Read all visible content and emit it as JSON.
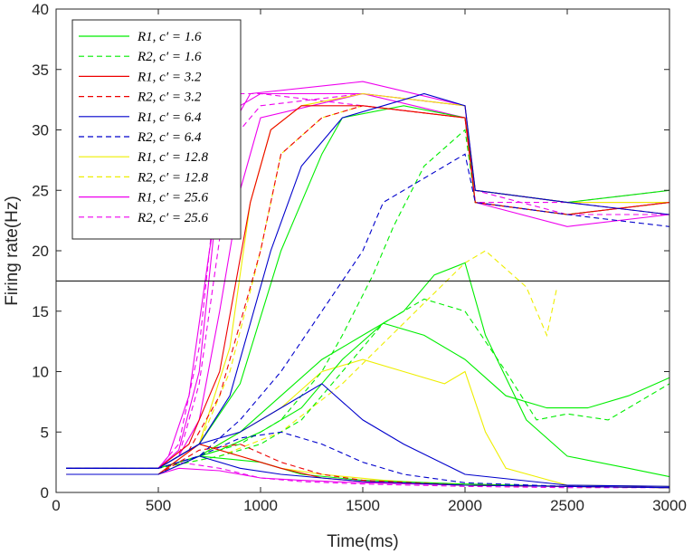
{
  "chart_data": {
    "type": "line",
    "xlabel": "Time(ms)",
    "ylabel": "Firing rate(Hz)",
    "xlim": [
      0,
      3000
    ],
    "ylim": [
      0,
      40
    ],
    "x_ticks": [
      "0",
      "500",
      "1000",
      "1500",
      "2000",
      "2500",
      "3000"
    ],
    "y_ticks": [
      "0",
      "5",
      "10",
      "15",
      "20",
      "25",
      "30",
      "35",
      "40"
    ],
    "grid": false,
    "legend_position": "top-left",
    "threshold": 17.5,
    "legend": [
      {
        "text": "R1, c′ = 1.6",
        "color": "#00ee00",
        "dash": "solid"
      },
      {
        "text": "R2, c′ = 1.6",
        "color": "#00ee00",
        "dash": "dashed"
      },
      {
        "text": "R1, c′ = 3.2",
        "color": "#ee0000",
        "dash": "solid"
      },
      {
        "text": "R2, c′ = 3.2",
        "color": "#ee0000",
        "dash": "dashed"
      },
      {
        "text": "R1, c′ = 6.4",
        "color": "#0000cc",
        "dash": "solid"
      },
      {
        "text": "R2, c′ = 6.4",
        "color": "#0000cc",
        "dash": "dashed"
      },
      {
        "text": "R1, c′ = 12.8",
        "color": "#eeee00",
        "dash": "solid"
      },
      {
        "text": "R2, c′ = 12.8",
        "color": "#eeee00",
        "dash": "dashed"
      },
      {
        "text": "R1, c′ = 25.6",
        "color": "#ee00ee",
        "dash": "solid"
      },
      {
        "text": "R2, c′ = 25.6",
        "color": "#ee00ee",
        "dash": "dashed"
      }
    ],
    "series": [
      {
        "color": "#ee00ee",
        "dash": "solid",
        "x": [
          50,
          500,
          600,
          700,
          800,
          900,
          1000,
          1500,
          2000,
          2050,
          2500,
          3000
        ],
        "y": [
          2,
          2,
          3.5,
          10,
          26,
          32,
          33,
          33,
          32,
          25,
          24,
          24
        ]
      },
      {
        "color": "#ee00ee",
        "dash": "solid",
        "x": [
          50,
          500,
          550,
          650,
          750,
          850,
          950,
          1500,
          2000,
          2050,
          2500,
          3000
        ],
        "y": [
          2,
          2,
          3,
          8,
          20,
          30,
          33,
          34,
          32,
          24,
          23,
          24
        ]
      },
      {
        "color": "#ee00ee",
        "dash": "solid",
        "x": [
          50,
          500,
          600,
          700,
          800,
          900,
          1000,
          1500,
          2000,
          2050,
          2500,
          3000
        ],
        "y": [
          2,
          2,
          3,
          6,
          15,
          25,
          31,
          33,
          31,
          24,
          22,
          23
        ]
      },
      {
        "color": "#ee00ee",
        "dash": "dashed",
        "x": [
          50,
          500,
          600,
          700,
          800,
          900,
          1000,
          1500,
          2000,
          2050,
          2500,
          3000
        ],
        "y": [
          2,
          2,
          4,
          12,
          28,
          33,
          33,
          32,
          31,
          24,
          24,
          25
        ]
      },
      {
        "color": "#ee00ee",
        "dash": "dashed",
        "x": [
          50,
          500,
          600,
          700,
          800,
          900,
          1000,
          1500,
          2000,
          2050,
          2500,
          3000
        ],
        "y": [
          2,
          2,
          3,
          9,
          21,
          30,
          32,
          33,
          32,
          25,
          23,
          23
        ]
      },
      {
        "color": "#ee00ee",
        "dash": "solid",
        "x": [
          50,
          500,
          600,
          800,
          1000,
          1200,
          1500,
          2000,
          2500,
          3000
        ],
        "y": [
          1.5,
          1.5,
          2,
          1.8,
          1.2,
          1,
          0.8,
          0.6,
          0.5,
          0.4
        ]
      },
      {
        "color": "#ee00ee",
        "dash": "dashed",
        "x": [
          50,
          500,
          600,
          800,
          1000,
          1200,
          1500,
          2000,
          2500,
          3000
        ],
        "y": [
          1.5,
          1.5,
          2.5,
          2,
          1.2,
          0.9,
          0.7,
          0.5,
          0.4,
          0.4
        ]
      },
      {
        "color": "#eeee00",
        "dash": "solid",
        "x": [
          50,
          500,
          700,
          850,
          950,
          1050,
          1200,
          1500,
          2000,
          2050,
          2500,
          3000
        ],
        "y": [
          2,
          2,
          4,
          12,
          24,
          30,
          32,
          33,
          32,
          25,
          24,
          24
        ]
      },
      {
        "color": "#eeee00",
        "dash": "dashed",
        "x": [
          50,
          500,
          700,
          850,
          1000,
          1100,
          1300,
          1500,
          2000,
          2050,
          2500,
          3000
        ],
        "y": [
          2,
          2,
          4,
          10,
          20,
          28,
          31,
          32,
          31,
          24,
          23,
          24
        ]
      },
      {
        "color": "#eeee00",
        "dash": "solid",
        "x": [
          50,
          500,
          700,
          900,
          1100,
          1300,
          1500,
          1700,
          1900,
          2000,
          2100,
          2200,
          2500,
          3000
        ],
        "y": [
          2,
          2,
          3,
          5,
          7,
          10,
          11,
          10,
          9,
          10,
          5,
          2,
          0.6,
          0.5
        ]
      },
      {
        "color": "#eeee00",
        "dash": "dashed",
        "x": [
          50,
          500,
          800,
          1100,
          1400,
          1700,
          2000,
          2100,
          2300,
          2400,
          2450
        ],
        "y": [
          2,
          2,
          3,
          5,
          9,
          14,
          19,
          20,
          17,
          13,
          17
        ]
      },
      {
        "color": "#eeee00",
        "dash": "solid",
        "x": [
          50,
          500,
          700,
          900,
          1100,
          1300,
          1600,
          2000,
          2500,
          3000
        ],
        "y": [
          1.5,
          1.5,
          4,
          3,
          2,
          1.5,
          1,
          0.6,
          0.5,
          0.4
        ]
      },
      {
        "color": "#00ee00",
        "dash": "solid",
        "x": [
          50,
          500,
          700,
          900,
          1100,
          1300,
          1400,
          1700,
          2000,
          2050,
          2500,
          3000
        ],
        "y": [
          2,
          2,
          4,
          9,
          20,
          28,
          31,
          32,
          31,
          25,
          24,
          25
        ]
      },
      {
        "color": "#00ee00",
        "dash": "solid",
        "x": [
          50,
          500,
          700,
          900,
          1100,
          1300,
          1500,
          1700,
          1850,
          2000,
          2100,
          2300,
          2500,
          2800,
          3000
        ],
        "y": [
          2,
          2,
          3,
          5,
          8,
          11,
          13,
          15,
          18,
          19,
          13,
          6,
          3,
          2,
          1.3
        ]
      },
      {
        "color": "#00ee00",
        "dash": "dashed",
        "x": [
          50,
          500,
          700,
          900,
          1100,
          1200,
          1300,
          1400,
          1550,
          1650,
          1800,
          2000,
          2050,
          2500,
          3000
        ],
        "y": [
          2,
          2,
          3,
          4,
          6,
          8,
          10,
          13,
          18,
          22,
          27,
          30,
          24,
          23,
          24
        ]
      },
      {
        "color": "#00ee00",
        "dash": "solid",
        "x": [
          50,
          500,
          800,
          1000,
          1200,
          1400,
          1600,
          1800,
          2000,
          2200,
          2400,
          2600,
          2800,
          3000
        ],
        "y": [
          2,
          2,
          3.5,
          5,
          7,
          11,
          14,
          13,
          11,
          8,
          7,
          7,
          8,
          9.5
        ]
      },
      {
        "color": "#00ee00",
        "dash": "dashed",
        "x": [
          50,
          500,
          800,
          1000,
          1200,
          1400,
          1600,
          1800,
          2000,
          2200,
          2350,
          2500,
          2700,
          3000
        ],
        "y": [
          2,
          2,
          3,
          4,
          6,
          10,
          14,
          16,
          15,
          10,
          6,
          6.5,
          6,
          9
        ]
      },
      {
        "color": "#00ee00",
        "dash": "solid",
        "x": [
          50,
          500,
          700,
          1000,
          1200,
          1500,
          2000,
          2500,
          3000
        ],
        "y": [
          1.5,
          1.5,
          3,
          2.5,
          1.5,
          1,
          0.7,
          0.5,
          0.4
        ]
      },
      {
        "color": "#ee0000",
        "dash": "solid",
        "x": [
          50,
          500,
          650,
          800,
          950,
          1050,
          1200,
          1500,
          2000,
          2050,
          2500,
          3000
        ],
        "y": [
          2,
          2,
          4,
          10,
          24,
          30,
          32,
          32,
          31,
          24,
          23,
          24
        ]
      },
      {
        "color": "#ee0000",
        "dash": "dashed",
        "x": [
          50,
          500,
          650,
          800,
          1000,
          1100,
          1300,
          1500,
          2000,
          2050,
          2500,
          3000
        ],
        "y": [
          2,
          2,
          3.5,
          8,
          20,
          28,
          31,
          32,
          31,
          25,
          24,
          23
        ]
      },
      {
        "color": "#ee0000",
        "dash": "solid",
        "x": [
          50,
          500,
          700,
          900,
          1100,
          1300,
          1500,
          2000,
          2500,
          3000
        ],
        "y": [
          1.5,
          1.5,
          4,
          3,
          2,
          1.2,
          0.9,
          0.6,
          0.5,
          0.4
        ]
      },
      {
        "color": "#ee0000",
        "dash": "dashed",
        "x": [
          50,
          500,
          700,
          900,
          1100,
          1300,
          1500,
          2000,
          2500,
          3000
        ],
        "y": [
          1.5,
          1.5,
          3.5,
          4,
          2.5,
          1.5,
          1,
          0.6,
          0.5,
          0.4
        ]
      },
      {
        "color": "#0000cc",
        "dash": "solid",
        "x": [
          50,
          500,
          700,
          850,
          950,
          1050,
          1200,
          1400,
          1600,
          1800,
          2000,
          2050,
          2500,
          3000
        ],
        "y": [
          2,
          2,
          4,
          8,
          14,
          20,
          27,
          31,
          32,
          33,
          32,
          25,
          24,
          23
        ]
      },
      {
        "color": "#0000cc",
        "dash": "dashed",
        "x": [
          50,
          500,
          700,
          900,
          1100,
          1300,
          1500,
          1600,
          1800,
          2000,
          2050,
          2500,
          3000
        ],
        "y": [
          2,
          2,
          3,
          6,
          10,
          15,
          20,
          24,
          26,
          28,
          24,
          23,
          22
        ]
      },
      {
        "color": "#0000cc",
        "dash": "solid",
        "x": [
          50,
          500,
          700,
          900,
          1100,
          1300,
          1500,
          1700,
          2000,
          2500,
          3000
        ],
        "y": [
          2,
          2,
          4,
          5,
          7,
          9,
          6,
          4,
          1.5,
          0.6,
          0.5
        ]
      },
      {
        "color": "#0000cc",
        "dash": "dashed",
        "x": [
          50,
          500,
          700,
          900,
          1100,
          1300,
          1500,
          1700,
          2000,
          2500,
          3000
        ],
        "y": [
          2,
          2,
          3,
          4.5,
          5,
          4,
          2.5,
          1.5,
          0.8,
          0.5,
          0.4
        ]
      },
      {
        "color": "#0000cc",
        "dash": "solid",
        "x": [
          50,
          500,
          700,
          900,
          1100,
          1300,
          1500,
          2000,
          2500,
          3000
        ],
        "y": [
          1.5,
          1.5,
          3,
          2,
          1.5,
          1.2,
          0.9,
          0.6,
          0.5,
          0.4
        ]
      }
    ]
  }
}
